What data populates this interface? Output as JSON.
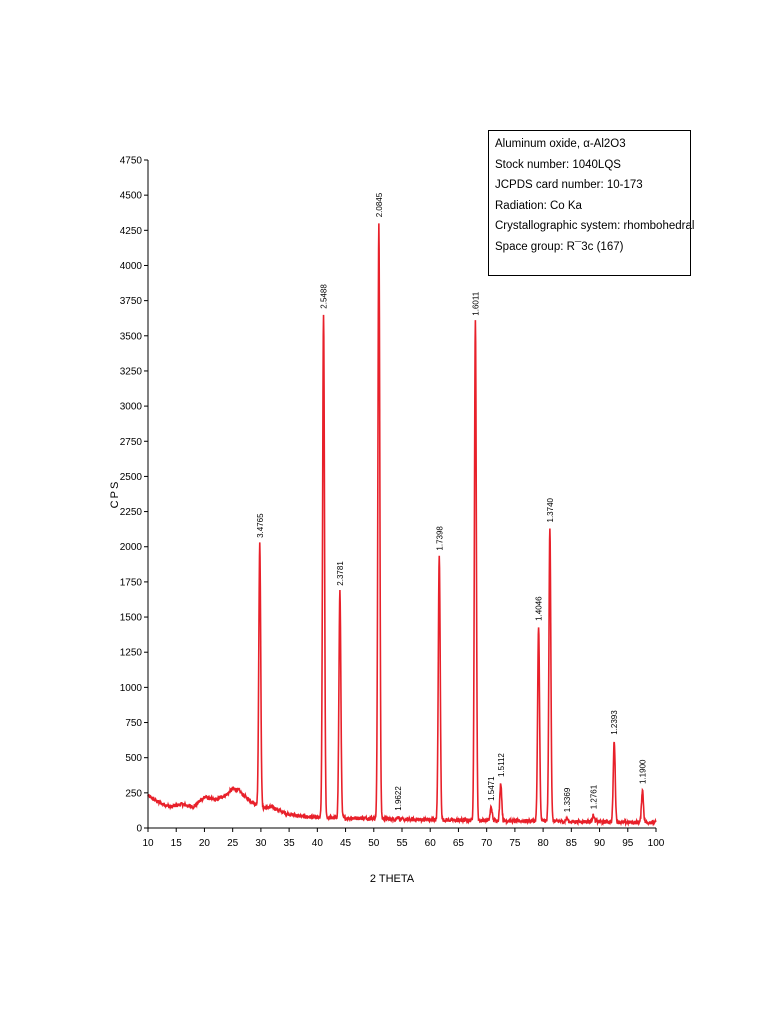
{
  "info_box": {
    "lines": [
      "Aluminum oxide, α-Al2O3",
      "Stock number: 1040LQS",
      "JCPDS card number: 10-173",
      "Radiation: Co Ka",
      "Crystallographic system: rhombohedral",
      "Space group: R¯3c (167)"
    ]
  },
  "chart_data": {
    "type": "line",
    "title": "",
    "xlabel": "2 THETA",
    "ylabel": "CPS",
    "xlim": [
      10,
      100
    ],
    "ylim": [
      0,
      4750
    ],
    "x_ticks": [
      10,
      15,
      20,
      25,
      30,
      35,
      40,
      45,
      50,
      55,
      60,
      65,
      70,
      75,
      80,
      85,
      90,
      95,
      100
    ],
    "y_ticks": [
      0,
      250,
      500,
      750,
      1000,
      1250,
      1500,
      1750,
      2000,
      2250,
      2500,
      2750,
      3000,
      3250,
      3500,
      3750,
      4000,
      4250,
      4500,
      4750
    ],
    "grid": false,
    "series_color": "#e8202a",
    "background_points": [
      [
        10,
        230
      ],
      [
        12,
        180
      ],
      [
        14,
        150
      ],
      [
        16,
        170
      ],
      [
        18,
        150
      ],
      [
        20,
        220
      ],
      [
        22,
        200
      ],
      [
        24,
        240
      ],
      [
        25,
        280
      ],
      [
        26,
        270
      ],
      [
        27,
        230
      ],
      [
        28,
        200
      ],
      [
        30,
        140
      ],
      [
        32,
        150
      ],
      [
        34,
        110
      ],
      [
        36,
        90
      ],
      [
        38,
        80
      ],
      [
        40,
        75
      ],
      [
        45,
        70
      ],
      [
        50,
        70
      ],
      [
        55,
        60
      ],
      [
        60,
        60
      ],
      [
        65,
        55
      ],
      [
        70,
        55
      ],
      [
        75,
        50
      ],
      [
        80,
        50
      ],
      [
        85,
        45
      ],
      [
        90,
        45
      ],
      [
        95,
        40
      ],
      [
        100,
        40
      ]
    ],
    "peaks": [
      {
        "x": 29.8,
        "y": 2020,
        "label": "3.4765"
      },
      {
        "x": 41.1,
        "y": 3650,
        "label": "2.5488"
      },
      {
        "x": 44.0,
        "y": 1680,
        "label": "2.3781"
      },
      {
        "x": 50.9,
        "y": 4300,
        "label": "2.0845"
      },
      {
        "x": 54.3,
        "y": 80,
        "label": "1.9622"
      },
      {
        "x": 61.6,
        "y": 1930,
        "label": "1.7398"
      },
      {
        "x": 68.0,
        "y": 3600,
        "label": "1.6011"
      },
      {
        "x": 70.8,
        "y": 150,
        "label": "1.5471"
      },
      {
        "x": 72.5,
        "y": 320,
        "label": "1.5112"
      },
      {
        "x": 79.2,
        "y": 1430,
        "label": "1.4046"
      },
      {
        "x": 81.2,
        "y": 2130,
        "label": "1.3740"
      },
      {
        "x": 84.2,
        "y": 70,
        "label": "1.3369"
      },
      {
        "x": 88.9,
        "y": 90,
        "label": "1.2761"
      },
      {
        "x": 92.6,
        "y": 620,
        "label": "1.2393"
      },
      {
        "x": 97.6,
        "y": 270,
        "label": "1.1900"
      }
    ]
  }
}
